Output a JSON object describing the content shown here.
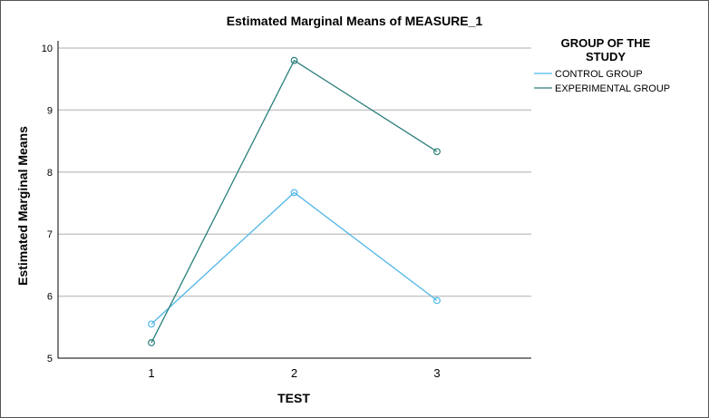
{
  "chart_data": {
    "type": "line",
    "title": "Estimated Marginal Means of MEASURE_1",
    "xlabel": "TEST",
    "ylabel": "Estimated Marginal Means",
    "categories": [
      "1",
      "2",
      "3"
    ],
    "ylim": [
      5,
      10
    ],
    "yticks": [
      "5",
      "6",
      "7",
      "8",
      "9",
      "10"
    ],
    "grid": true,
    "legend": {
      "title_line1": "GROUP OF THE",
      "title_line2": "STUDY",
      "placement": "right"
    },
    "series": [
      {
        "name": "CONTROL GROUP",
        "values": [
          5.55,
          7.67,
          5.93
        ],
        "color": "#4fb6e6"
      },
      {
        "name": "EXPERIMENTAL GROUP",
        "values": [
          5.25,
          9.8,
          8.33
        ],
        "color": "#2a7f7b"
      }
    ]
  }
}
